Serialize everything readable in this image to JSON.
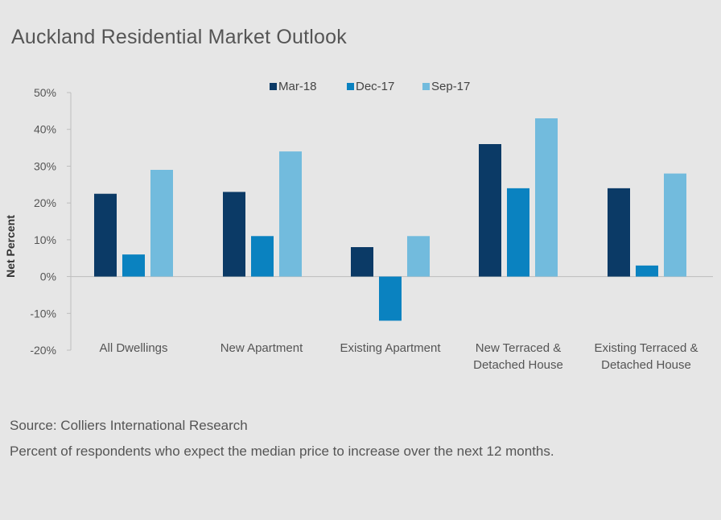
{
  "title": "Auckland Residential Market Outlook",
  "source": "Source: Colliers International Research",
  "note": "Percent of respondents who expect the median price to increase over the next 12 months.",
  "chart_data": {
    "type": "bar",
    "ylabel": "Net Percent",
    "ylim": [
      -20,
      50
    ],
    "yticks": [
      50,
      40,
      30,
      20,
      10,
      0,
      -10,
      -20
    ],
    "ytick_labels": [
      "50%",
      "40%",
      "30%",
      "20%",
      "10%",
      "0%",
      "-10%",
      "-20%"
    ],
    "legend_position": "top-center",
    "categories": [
      [
        "All Dwellings"
      ],
      [
        "New Apartment"
      ],
      [
        "Existing Apartment"
      ],
      [
        "New Terraced &",
        "Detached House"
      ],
      [
        "Existing Terraced &",
        "Detached House"
      ]
    ],
    "series": [
      {
        "name": "Mar-18",
        "color": "#0b3a66",
        "values": [
          22.5,
          23,
          8,
          36,
          24
        ]
      },
      {
        "name": "Dec-17",
        "color": "#0a82c0",
        "values": [
          6,
          11,
          -12,
          24,
          3
        ]
      },
      {
        "name": "Sep-17",
        "color": "#72bbdd",
        "values": [
          29,
          34,
          11,
          43,
          28
        ]
      }
    ]
  }
}
